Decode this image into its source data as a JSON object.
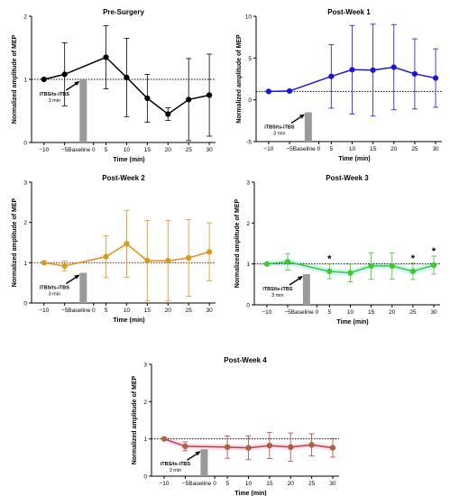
{
  "chart_data": [
    {
      "type": "line",
      "title": "Pre-Surgery",
      "xlabel": "Time (min)",
      "ylabel": "Normalized amplitude of MEP",
      "series_color": "#000000",
      "reference_line_color": "#000000",
      "ylim": [
        0,
        2
      ],
      "yticks": [
        0,
        1,
        2
      ],
      "xticks": [
        -10,
        -5,
        5,
        10,
        15,
        20,
        25,
        30
      ],
      "xtick_labels": [
        "−10",
        "−5",
        "5",
        "10",
        "15",
        "20",
        "25",
        "30"
      ],
      "x": [
        -10,
        -5,
        5,
        10,
        15,
        20,
        25,
        30
      ],
      "values": [
        1.0,
        1.08,
        1.35,
        1.03,
        0.7,
        0.45,
        0.68,
        0.75
      ],
      "error": [
        0.0,
        0.5,
        0.5,
        0.62,
        0.38,
        0.1,
        0.65,
        0.65
      ],
      "baseline_label": "Baseline",
      "zero_label": "0",
      "stim_label_line1": "iTBS/ts-iTBS",
      "stim_label_line2": "3 min",
      "stim_bar_value": 1.0,
      "asterisks_at": []
    },
    {
      "type": "line",
      "title": "Post-Week 1",
      "xlabel": "Time (min)",
      "ylabel": "Normalized amplitude of MEP",
      "series_color": "#1a14d8",
      "reference_line_color": "#000000",
      "ylim": [
        -5,
        10
      ],
      "yticks": [
        -5,
        0,
        5,
        10
      ],
      "xticks": [
        -10,
        -5,
        5,
        10,
        15,
        20,
        25,
        30
      ],
      "xtick_labels": [
        "−10",
        "−5",
        "5",
        "10",
        "15",
        "20",
        "25",
        "30"
      ],
      "x": [
        -10,
        -5,
        5,
        10,
        15,
        20,
        25,
        30
      ],
      "values": [
        1.0,
        1.05,
        2.8,
        3.6,
        3.55,
        3.9,
        3.1,
        2.6
      ],
      "error": [
        0.0,
        0.0,
        3.8,
        5.3,
        5.5,
        5.1,
        4.2,
        3.5
      ],
      "baseline_label": "Baseline",
      "zero_label": "0",
      "stim_label_line1": "iTBS/ts-iTBS",
      "stim_label_line2": "3 min",
      "stim_bar_value": -1.5,
      "asterisks_at": []
    },
    {
      "type": "line",
      "title": "Post-Week 2",
      "xlabel": "Time (min)",
      "ylabel": "Normalized amplitude of MEP",
      "series_color": "#e88f1e",
      "marker_color": "#c9a21c",
      "reference_line_color": "#8b1a1a",
      "ylim": [
        0,
        3
      ],
      "yticks": [
        0,
        1,
        2,
        3
      ],
      "xticks": [
        -10,
        -5,
        5,
        10,
        15,
        20,
        25,
        30
      ],
      "xtick_labels": [
        "−10",
        "−5",
        "5",
        "10",
        "15",
        "20",
        "25",
        "30"
      ],
      "x": [
        -10,
        -5,
        5,
        10,
        15,
        20,
        25,
        30
      ],
      "values": [
        1.0,
        0.92,
        1.15,
        1.47,
        1.05,
        1.05,
        1.12,
        1.27
      ],
      "error": [
        0.0,
        0.12,
        0.52,
        0.83,
        1.0,
        1.0,
        0.95,
        0.72
      ],
      "baseline_label": "Baseline",
      "zero_label": "0",
      "stim_label_line1": "iTBS/ts-iTBS",
      "stim_label_line2": "3 min",
      "stim_bar_value": 0.75,
      "asterisks_at": []
    },
    {
      "type": "line",
      "title": "Post-Week 3",
      "xlabel": "Time (min)",
      "ylabel": "Normalized amplitude of MEP",
      "series_color": "#3ec92a",
      "band_color": "#a7f0f0",
      "reference_line_color": "#000000",
      "ylim": [
        0,
        3
      ],
      "yticks": [
        0,
        1,
        2,
        3
      ],
      "xticks": [
        -10,
        -5,
        5,
        10,
        15,
        20,
        25,
        30
      ],
      "xtick_labels": [
        "−10",
        "−5",
        "5",
        "10",
        "15",
        "20",
        "25",
        "30"
      ],
      "x": [
        -10,
        -5,
        5,
        10,
        15,
        20,
        25,
        30
      ],
      "values": [
        1.0,
        1.05,
        0.82,
        0.78,
        0.95,
        0.95,
        0.82,
        0.97
      ],
      "error": [
        0.0,
        0.2,
        0.18,
        0.22,
        0.32,
        0.32,
        0.2,
        0.22
      ],
      "baseline_label": "Baseline",
      "zero_label": "0",
      "stim_label_line1": "iTBS/ts-iTBS",
      "stim_label_line2": "3 min",
      "stim_bar_value": 0.75,
      "asterisk_label": "*",
      "asterisks_at": [
        5,
        25,
        30
      ]
    },
    {
      "type": "line",
      "title": "Post-Week 4",
      "xlabel": "Time (min)",
      "ylabel": "Normalized amplitude of MEP",
      "series_color": "#b5423a",
      "marker_color": "#a8663a",
      "band_color": "#f5c6e6",
      "reference_line_color": "#000000",
      "ylim": [
        0,
        3
      ],
      "yticks": [
        0,
        1,
        2,
        3
      ],
      "xticks": [
        -10,
        -5,
        5,
        10,
        15,
        20,
        25,
        30
      ],
      "xtick_labels": [
        "−10",
        "−5",
        "5",
        "10",
        "15",
        "20",
        "25",
        "30"
      ],
      "x": [
        -10,
        -5,
        5,
        10,
        15,
        20,
        25,
        30
      ],
      "values": [
        1.0,
        0.8,
        0.78,
        0.76,
        0.82,
        0.78,
        0.84,
        0.76
      ],
      "error": [
        0.0,
        0.12,
        0.3,
        0.32,
        0.35,
        0.38,
        0.3,
        0.25
      ],
      "baseline_label": "Baseline",
      "zero_label": "0",
      "stim_label_line1": "iTBS/ts-iTBS",
      "stim_label_line2": "3 min",
      "stim_bar_value": 0.72,
      "asterisks_at": []
    }
  ]
}
